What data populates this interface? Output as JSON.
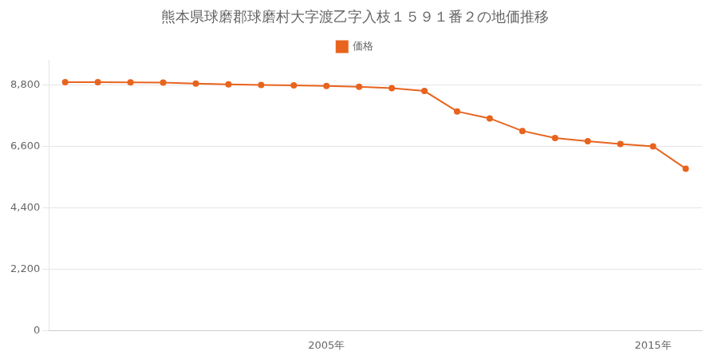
{
  "chart_data": {
    "type": "line",
    "title": "熊本県球磨郡球磨村大字渡乙字入枝１５９１番２の地価推移",
    "x": [
      1997,
      1998,
      1999,
      2000,
      2001,
      2002,
      2003,
      2004,
      2005,
      2006,
      2007,
      2008,
      2009,
      2010,
      2011,
      2012,
      2013,
      2014,
      2015,
      2016
    ],
    "series": [
      {
        "name": "価格",
        "color": "#e8641e",
        "marker": "circle",
        "values": [
          8900,
          8900,
          8890,
          8880,
          8850,
          8820,
          8800,
          8780,
          8760,
          8730,
          8680,
          8580,
          7850,
          7600,
          7150,
          6900,
          6780,
          6680,
          6600,
          5800
        ]
      }
    ],
    "xlim": [
      1996.5,
      2016.5
    ],
    "xticks": [
      {
        "value": 2005,
        "label": "2005年"
      },
      {
        "value": 2015,
        "label": "2015年"
      }
    ],
    "ylim": [
      0,
      9680
    ],
    "yticks": [
      0,
      {
        "value": 2200,
        "label": "2,200"
      },
      {
        "value": 4400,
        "label": "4,400"
      },
      {
        "value": 6600,
        "label": "6,600"
      },
      {
        "value": 8800,
        "label": "8,800"
      }
    ],
    "grid": "y",
    "legend": "top"
  }
}
